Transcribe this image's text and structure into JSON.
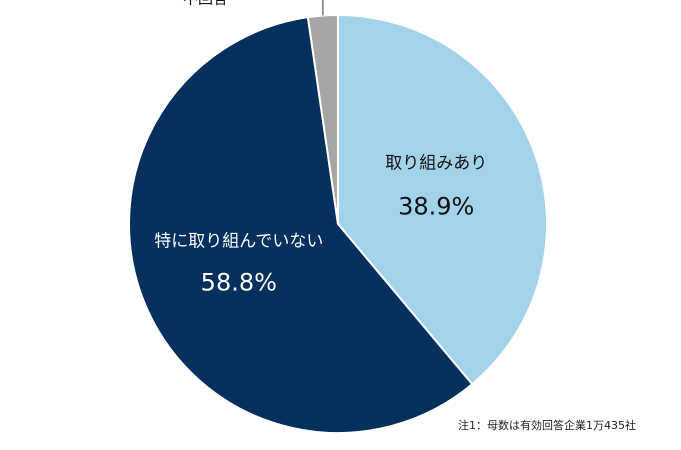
{
  "chart_data": {
    "type": "pie",
    "slices": [
      {
        "label": "取り組みあり",
        "value": 38.9,
        "display": "38.9%",
        "color": "#a3d3ea"
      },
      {
        "label": "特に取り組んでいない",
        "value": 58.8,
        "display": "58.8%",
        "color": "#04305e"
      },
      {
        "label": "不回答",
        "value": 2.3,
        "display": "",
        "color": "#a6a6a6"
      }
    ],
    "start_angle_deg": 0,
    "direction": "clockwise"
  },
  "footnote": "注1：母数は有効回答企業1万435社"
}
